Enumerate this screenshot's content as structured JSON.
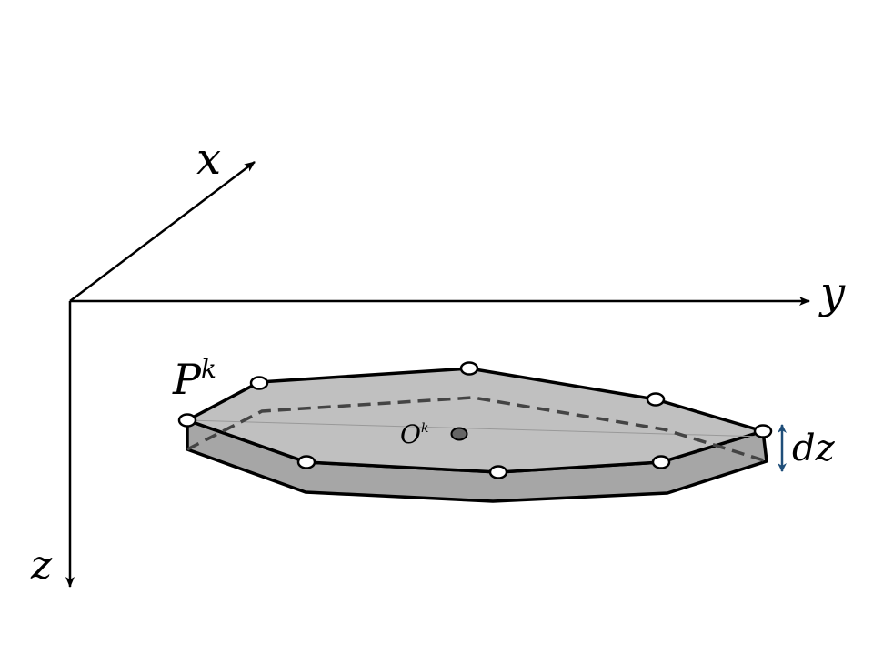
{
  "labels": {
    "x_axis": "x",
    "y_axis": "y",
    "z_axis": "z",
    "polygon_main": "P",
    "polygon_sup": "k",
    "center_main": "O",
    "center_sup": "k",
    "thickness": "dz"
  },
  "colors": {
    "axis": "#000000",
    "top_face": "#c0c0c0",
    "side_face": "#a6a6a6",
    "outline": "#000000",
    "hidden_edge": "#444444",
    "vertex_fill": "#ffffff",
    "center_dot": "#666666",
    "dz_arrow": "#1f4e79"
  }
}
